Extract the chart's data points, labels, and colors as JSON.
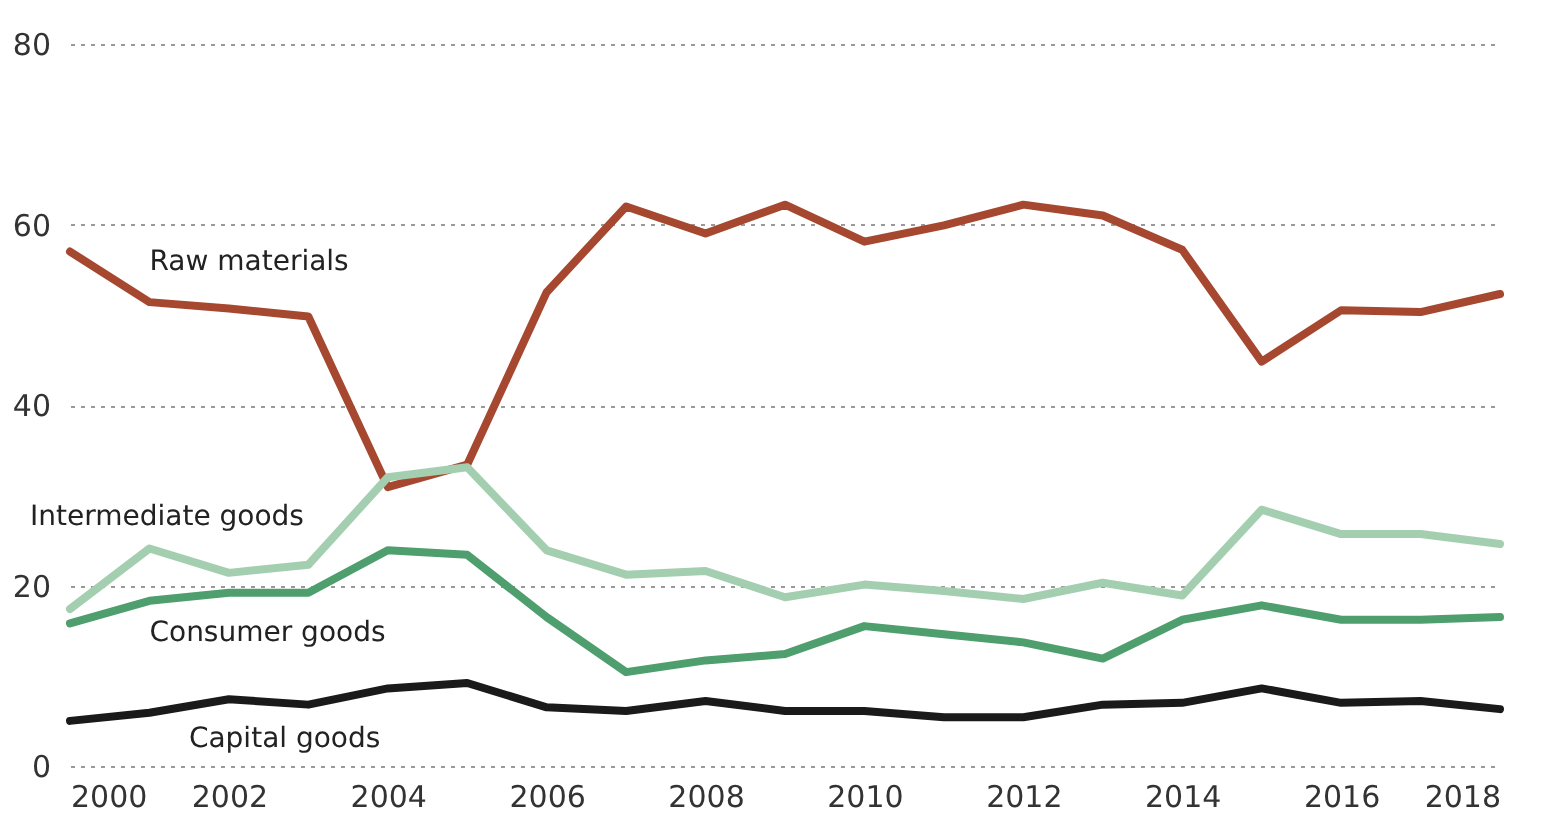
{
  "chart_data": {
    "type": "line",
    "x": [
      2000,
      2001,
      2002,
      2003,
      2004,
      2005,
      2006,
      2007,
      2008,
      2009,
      2010,
      2011,
      2012,
      2013,
      2014,
      2015,
      2016,
      2017,
      2018
    ],
    "xlim": [
      2000,
      2018
    ],
    "xticks": [
      2000,
      2002,
      2004,
      2006,
      2008,
      2010,
      2012,
      2014,
      2016,
      2018
    ],
    "ylim": [
      0,
      80
    ],
    "yticks": [
      0,
      20,
      40,
      60,
      80
    ],
    "grid": "y",
    "legend": false,
    "marker": "none",
    "line_style": "solid",
    "series": [
      {
        "name": "Raw materials",
        "color": "#a6472f",
        "values": [
          57.0,
          51.4,
          50.7,
          49.8,
          30.9,
          33.4,
          52.5,
          62.0,
          59.0,
          62.2,
          58.1,
          59.9,
          62.2,
          61.0,
          57.2,
          44.8,
          50.5,
          50.3,
          52.3
        ]
      },
      {
        "name": "Intermediate goods",
        "color": "#a3cfb0",
        "values": [
          17.4,
          24.1,
          21.4,
          22.3,
          32.0,
          33.1,
          23.9,
          21.2,
          21.6,
          18.7,
          20.1,
          19.4,
          18.5,
          20.3,
          18.9,
          28.4,
          25.7,
          25.7,
          24.6
        ]
      },
      {
        "name": "Consumer goods",
        "color": "#4e9e6e",
        "values": [
          15.8,
          18.3,
          19.2,
          19.2,
          23.9,
          23.4,
          16.5,
          10.4,
          11.7,
          12.4,
          15.5,
          14.6,
          13.7,
          11.9,
          16.2,
          17.8,
          16.2,
          16.2,
          16.5
        ]
      },
      {
        "name": "Capital goods",
        "color": "#1a1a1a",
        "values": [
          5.0,
          5.9,
          7.4,
          6.8,
          8.6,
          9.2,
          6.5,
          6.1,
          7.2,
          6.1,
          6.1,
          5.4,
          5.4,
          6.8,
          7.0,
          8.6,
          7.0,
          7.2,
          6.3
        ]
      }
    ]
  }
}
